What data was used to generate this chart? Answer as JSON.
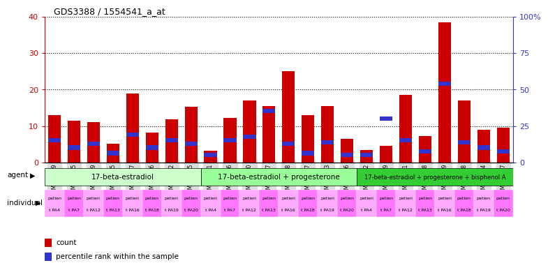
{
  "title": "GDS3388 / 1554541_a_at",
  "gsm_ids": [
    "GSM259339",
    "GSM259345",
    "GSM259359",
    "GSM259365",
    "GSM259377",
    "GSM259386",
    "GSM259392",
    "GSM259395",
    "GSM259341",
    "GSM259346",
    "GSM259360",
    "GSM259367",
    "GSM259378",
    "GSM259387",
    "GSM259393",
    "GSM259396",
    "GSM259342",
    "GSM259349",
    "GSM259361",
    "GSM259368",
    "GSM259379",
    "GSM259388",
    "GSM259394",
    "GSM259397"
  ],
  "count_values": [
    13,
    11.5,
    11,
    5.2,
    19,
    8.2,
    11.8,
    15.2,
    3.2,
    12.2,
    17.0,
    15.5,
    25.0,
    13.0,
    15.5,
    6.5,
    3.5,
    4.5,
    18.5,
    7.2,
    38.5,
    17.0,
    9.0,
    9.5
  ],
  "percentile_positions": [
    5.5,
    3.5,
    4.5,
    2.0,
    7.0,
    3.5,
    5.5,
    4.5,
    1.5,
    5.5,
    6.5,
    13.5,
    4.5,
    2.0,
    5.0,
    1.5,
    1.5,
    11.5,
    5.5,
    2.5,
    21.0,
    5.0,
    3.5,
    2.5
  ],
  "agent_groups": [
    {
      "label": "17-beta-estradiol",
      "start": 0,
      "end": 8,
      "color": "#ccffcc"
    },
    {
      "label": "17-beta-estradiol + progesterone",
      "start": 8,
      "end": 16,
      "color": "#99ff99"
    },
    {
      "label": "17-beta-estradiol + progesterone + bisphenol A",
      "start": 16,
      "end": 24,
      "color": "#33cc33"
    }
  ],
  "individual_labels_top": [
    "patien",
    "patien",
    "patien",
    "patien",
    "patien",
    "patien",
    "patien",
    "patien",
    "patien",
    "patien",
    "patien",
    "patien",
    "patien",
    "patien",
    "patien",
    "patien",
    "patien",
    "patien",
    "patien",
    "patien",
    "patien",
    "patien",
    "patien",
    "patien"
  ],
  "individual_labels_bot": [
    "t PA4",
    "t PA7",
    "t PA12",
    "t PA13",
    "t PA16",
    "t PA18",
    "t PA19",
    "t PA20",
    "t PA4",
    "t PA7",
    "t PA12",
    "t PA13",
    "t PA16",
    "t PA18",
    "t PA19",
    "t PA20",
    "t PA4",
    "t PA7",
    "t PA12",
    "t PA13",
    "t PA16",
    "t PA18",
    "t PA19",
    "t PA20"
  ],
  "bar_color_red": "#cc0000",
  "bar_color_blue": "#3333cc",
  "left_ylim": [
    0,
    40
  ],
  "left_yticks": [
    0,
    10,
    20,
    30,
    40
  ],
  "right_yticks": [
    0,
    25,
    50,
    75,
    100
  ],
  "left_ycolor": "#cc0000",
  "right_ycolor": "#3333cc",
  "blue_bar_height": 1.2,
  "xtick_bg": "#dddddd"
}
